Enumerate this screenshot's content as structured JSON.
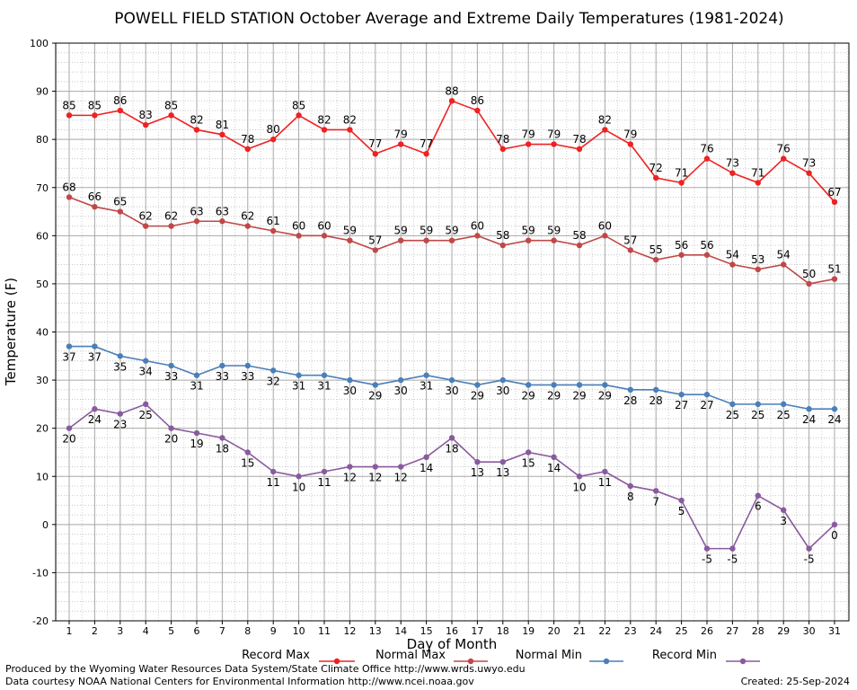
{
  "chart_data": {
    "type": "line",
    "title": "POWELL FIELD STATION October Average and Extreme Daily Temperatures (1981-2024)",
    "xlabel": "Day of Month",
    "ylabel": "Temperature (F)",
    "ylim": [
      -20,
      100
    ],
    "yticks": [
      -20,
      -10,
      0,
      10,
      20,
      30,
      40,
      50,
      60,
      70,
      80,
      90,
      100
    ],
    "x": [
      1,
      2,
      3,
      4,
      5,
      6,
      7,
      8,
      9,
      10,
      11,
      12,
      13,
      14,
      15,
      16,
      17,
      18,
      19,
      20,
      21,
      22,
      23,
      24,
      25,
      26,
      27,
      28,
      29,
      30,
      31
    ],
    "grid": true,
    "legend_position": "bottom",
    "series": [
      {
        "name": "Record Max",
        "color": "#ee2222",
        "label_position": "above",
        "values": [
          85,
          85,
          86,
          83,
          85,
          82,
          81,
          78,
          80,
          85,
          82,
          82,
          77,
          79,
          77,
          88,
          86,
          78,
          79,
          79,
          78,
          82,
          79,
          72,
          71,
          76,
          73,
          71,
          76,
          73,
          67
        ]
      },
      {
        "name": "Normal Max",
        "color": "#c04848",
        "label_position": "above",
        "values": [
          68,
          66,
          65,
          62,
          62,
          63,
          63,
          62,
          61,
          60,
          60,
          59,
          57,
          59,
          59,
          59,
          60,
          58,
          59,
          59,
          58,
          60,
          57,
          55,
          56,
          56,
          54,
          53,
          54,
          50,
          51
        ]
      },
      {
        "name": "Normal Min",
        "color": "#4a7fb8",
        "label_position": "below",
        "values": [
          37,
          37,
          35,
          34,
          33,
          31,
          33,
          33,
          32,
          31,
          31,
          30,
          29,
          30,
          31,
          30,
          29,
          30,
          29,
          29,
          29,
          29,
          28,
          28,
          27,
          27,
          25,
          25,
          25,
          24,
          24
        ]
      },
      {
        "name": "Record Min",
        "color": "#8a5a9e",
        "label_position": "below",
        "values": [
          20,
          24,
          23,
          25,
          20,
          19,
          18,
          15,
          11,
          10,
          11,
          12,
          12,
          12,
          14,
          18,
          13,
          13,
          15,
          14,
          10,
          11,
          8,
          7,
          5,
          -5,
          -5,
          6,
          3,
          -5,
          0
        ]
      }
    ]
  },
  "footer": {
    "produced_by": "Produced by the Wyoming Water Resources Data System/State Climate Office http://www.wrds.uwyo.edu",
    "courtesy": "Data courtesy NOAA National Centers for Environmental Information http://www.ncei.noaa.gov",
    "created": "Created:  25-Sep-2024"
  }
}
